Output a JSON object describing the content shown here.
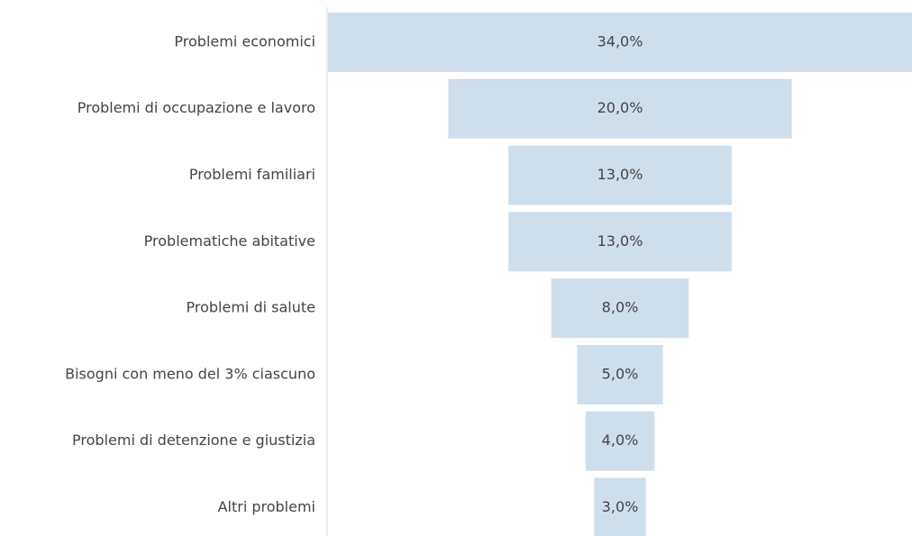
{
  "chart_data": {
    "type": "funnel",
    "categories": [
      "Problemi economici",
      "Problemi di occupazione e lavoro",
      "Problemi familiari",
      "Problematiche abitative",
      "Problemi di salute",
      "Bisogni con meno del 3% ciascuno",
      "Problemi di detenzione e giustizia",
      "Altri problemi"
    ],
    "values": [
      34,
      20,
      13,
      13,
      8,
      5,
      4,
      3
    ],
    "value_labels": [
      "34,0%",
      "20,0%",
      "13,0%",
      "13,0%",
      "8,0%",
      "5,0%",
      "4,0%",
      "3,0%"
    ],
    "color": "#cfdeeb"
  }
}
